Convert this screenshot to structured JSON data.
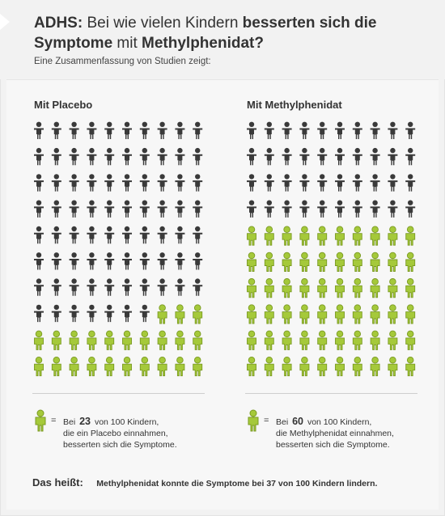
{
  "header": {
    "title_parts": [
      {
        "text": "ADHS:",
        "bold": true
      },
      {
        "text": " Bei wie vielen Kindern ",
        "bold": false
      },
      {
        "text": "besserten sich die Symptome",
        "bold": true
      },
      {
        "text": " mit ",
        "bold": false
      },
      {
        "text": "Methylphenidat?",
        "bold": true
      }
    ],
    "subtitle": "Eine Zusammenfassung von Studien zeigt:"
  },
  "colors": {
    "dark": "#3a3a3a",
    "green": "#a5c93a",
    "green_outline": "#7a9a22"
  },
  "icon": "child-figure-icon",
  "chart_data": [
    {
      "type": "icon-array",
      "title": "Mit Placebo",
      "total": 100,
      "highlighted": 23,
      "highlight_label": "Symptome besserten sich"
    },
    {
      "type": "icon-array",
      "title": "Mit Methylphenidat",
      "total": 100,
      "highlighted": 60,
      "highlight_label": "Symptome besserten sich"
    }
  ],
  "legends": [
    {
      "eq": "=",
      "prefix": "Bei",
      "number": "23",
      "line1_rest": "von 100 Kindern,",
      "line2": "die ein Placebo einnahmen,",
      "line3": "besserten sich die Symptome."
    },
    {
      "eq": "=",
      "prefix": "Bei",
      "number": "60",
      "line1_rest": "von 100 Kindern,",
      "line2": "die Methylphenidat einnahmen,",
      "line3": "besserten sich die Symptome."
    }
  ],
  "bottom": {
    "label": "Das heißt:",
    "text": "Methylphenidat konnte die Symptome bei 37 von 100 Kindern lindern."
  }
}
